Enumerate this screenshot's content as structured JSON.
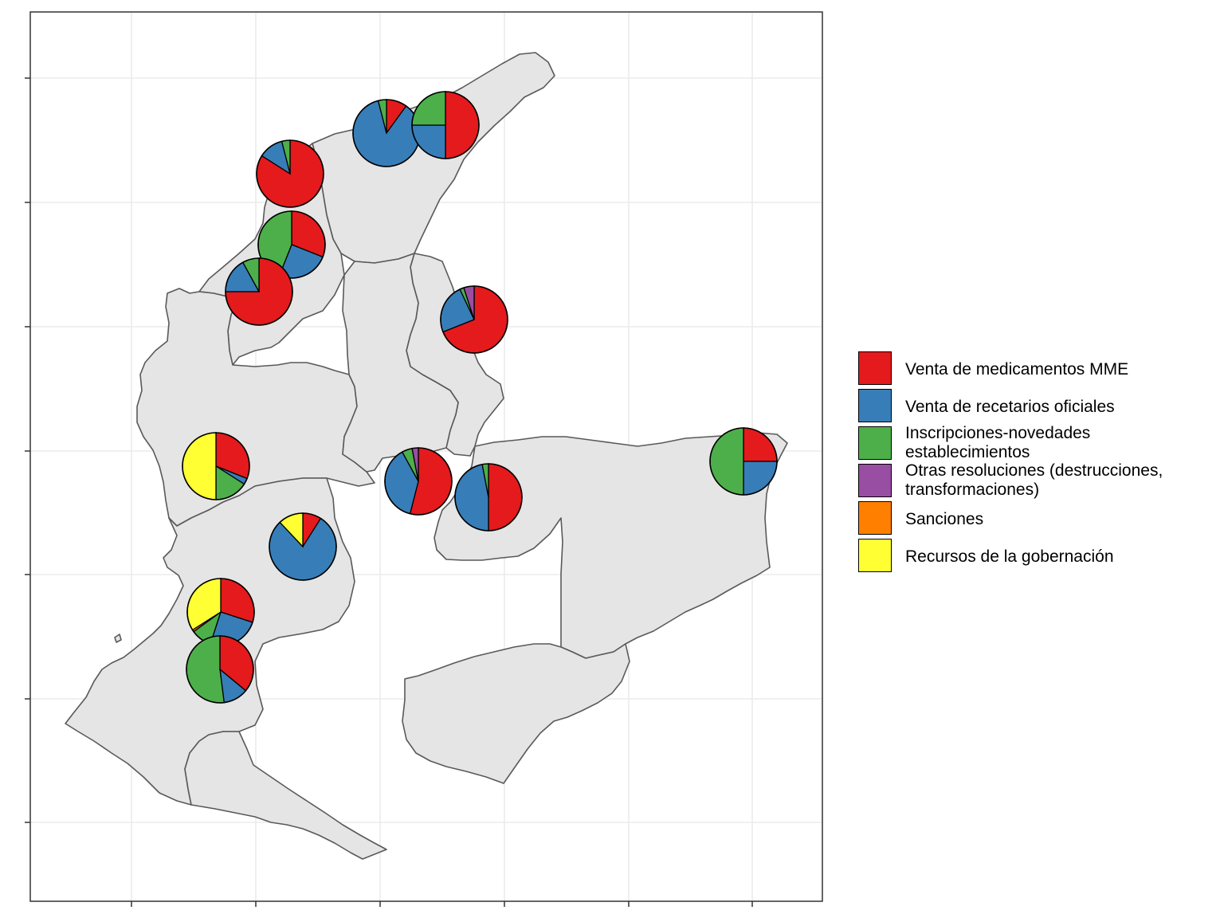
{
  "legend": {
    "items": [
      {
        "key": "mme",
        "label_lines": [
          "Venta de medicamentos MME"
        ],
        "color": "#E41A1C"
      },
      {
        "key": "recetarios",
        "label_lines": [
          "Venta de recetarios oficiales"
        ],
        "color": "#377EB8"
      },
      {
        "key": "inscripciones",
        "label_lines": [
          "Inscripciones-novedades",
          "establecimientos"
        ],
        "color": "#4DAF4A"
      },
      {
        "key": "otras",
        "label_lines": [
          "Otras resoluciones (destrucciones,",
          "transformaciones)"
        ],
        "color": "#984EA3"
      },
      {
        "key": "sanciones",
        "label_lines": [
          "Sanciones"
        ],
        "color": "#FF7F00"
      },
      {
        "key": "recursos",
        "label_lines": [
          "Recursos de la gobernación"
        ],
        "color": "#FFFF33"
      }
    ]
  },
  "map": {
    "land_fill": "#E5E5E5",
    "border_color": "#595959",
    "grid_color": "#EBEBEB",
    "pies": [
      {
        "name": "pie-north-west",
        "shares": {
          "mme": 0.84,
          "recetarios": 0.12,
          "inscripciones": 0.04
        }
      },
      {
        "name": "pie-north-center",
        "shares": {
          "mme": 0.1,
          "recetarios": 0.86,
          "inscripciones": 0.04
        }
      },
      {
        "name": "pie-north-east",
        "shares": {
          "mme": 0.5,
          "recetarios": 0.25,
          "inscripciones": 0.25
        }
      },
      {
        "name": "pie-coast-upper",
        "shares": {
          "mme": 0.31,
          "recetarios": 0.25,
          "inscripciones": 0.44
        }
      },
      {
        "name": "pie-coast-lower",
        "shares": {
          "mme": 0.75,
          "recetarios": 0.17,
          "inscripciones": 0.08
        }
      },
      {
        "name": "pie-east-upper",
        "shares": {
          "mme": 0.69,
          "recetarios": 0.24,
          "inscripciones": 0.02,
          "otras": 0.05
        }
      },
      {
        "name": "pie-west-middle",
        "shares": {
          "mme": 0.31,
          "recetarios": 0.03,
          "inscripciones": 0.16,
          "recursos": 0.5
        }
      },
      {
        "name": "pie-center-middle",
        "shares": {
          "mme": 0.54,
          "recetarios": 0.38,
          "inscripciones": 0.05,
          "otras": 0.03
        }
      },
      {
        "name": "pie-center-east",
        "shares": {
          "mme": 0.5,
          "recetarios": 0.47,
          "inscripciones": 0.03
        }
      },
      {
        "name": "pie-far-east",
        "shares": {
          "mme": 0.25,
          "recetarios": 0.25,
          "inscripciones": 0.5
        }
      },
      {
        "name": "pie-south-center",
        "shares": {
          "mme": 0.09,
          "recetarios": 0.79,
          "recursos": 0.12
        }
      },
      {
        "name": "pie-south-west-upper",
        "shares": {
          "mme": 0.3,
          "recetarios": 0.25,
          "inscripciones": 0.1,
          "sanciones": 0.01,
          "recursos": 0.34
        }
      },
      {
        "name": "pie-south-west-lower",
        "shares": {
          "mme": 0.36,
          "recetarios": 0.12,
          "inscripciones": 0.52
        }
      }
    ]
  }
}
